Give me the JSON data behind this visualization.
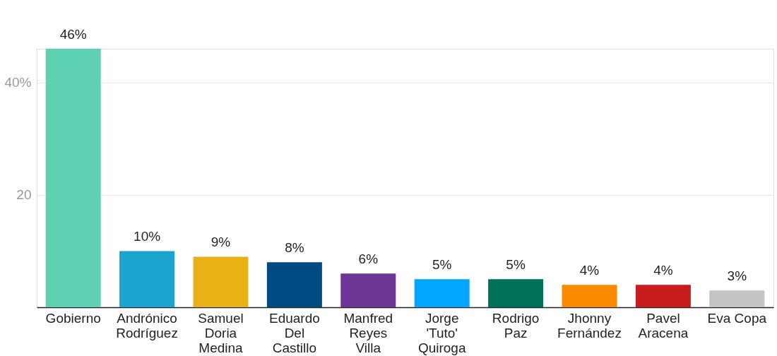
{
  "chart_data": {
    "type": "bar",
    "categories": [
      "Gobierno",
      "Andrónico Rodríguez",
      "Samuel Doria Medina",
      "Eduardo Del Castillo",
      "Manfred Reyes Villa",
      "Jorge 'Tuto' Quiroga",
      "Rodrigo Paz",
      "Jhonny Fernández",
      "Pavel Aracena",
      "Eva Copa"
    ],
    "values": [
      46,
      10,
      9,
      8,
      6,
      5,
      5,
      4,
      4,
      3
    ],
    "colors": [
      "#5fd1b3",
      "#1ba3cf",
      "#e8b217",
      "#004a84",
      "#6d3595",
      "#00a6ff",
      "#007158",
      "#fa8b00",
      "#c71e1d",
      "#c4c4c4"
    ],
    "value_labels": [
      "46%",
      "10%",
      "9%",
      "8%",
      "6%",
      "5%",
      "5%",
      "4%",
      "4%",
      "3%"
    ],
    "ylim": [
      0,
      46
    ],
    "yticks": [
      {
        "value": 20,
        "label": "20"
      },
      {
        "value": 40,
        "label": "40%"
      }
    ],
    "grid": "y"
  }
}
